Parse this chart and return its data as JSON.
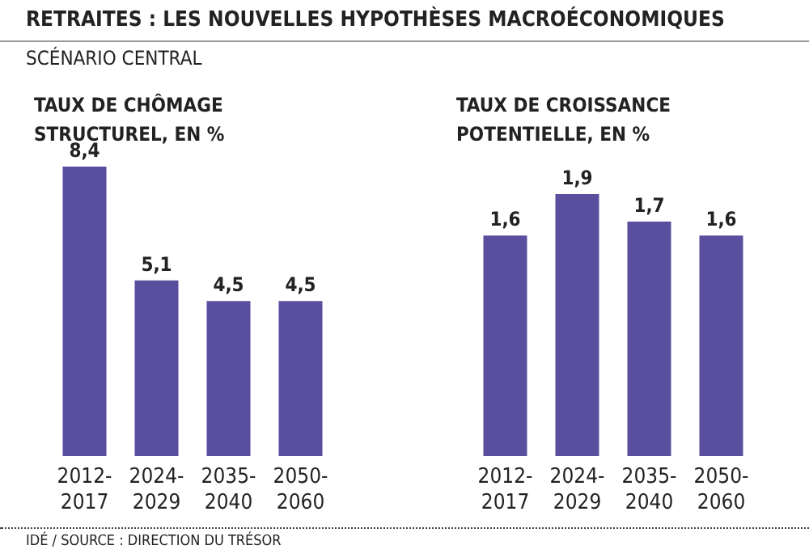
{
  "chart_data": [
    {
      "type": "bar",
      "title": "TAUX DE CHÔMAGE STRUCTUREL, EN %",
      "annotations": [
        "RETRAITES : LES NOUVELLES HYPOTHÈSES MACROÉCONOMIQUES",
        "SCÉNARIO CENTRAL"
      ],
      "categories": [
        "2012-2017",
        "2024-2029",
        "2035-2040",
        "2050-2060"
      ],
      "values": [
        8.4,
        5.1,
        4.5,
        4.5
      ],
      "value_labels": [
        "8,4",
        "5,1",
        "4,5",
        "4,5"
      ],
      "color": "#5a4f9f",
      "tick_labels": "x",
      "grid": false
    },
    {
      "type": "bar",
      "title": "TAUX DE CROISSANCE POTENTIELLE, EN %",
      "annotations": [
        "IDÉ / SOURCE : DIRECTION DU TRÉSOR"
      ],
      "categories": [
        "2012-2017",
        "2024-2029",
        "2035-2040",
        "2050-2060"
      ],
      "values": [
        1.6,
        1.9,
        1.7,
        1.6
      ],
      "value_labels": [
        "1,6",
        "1,9",
        "1,7",
        "1,6"
      ],
      "color": "#5a4f9f",
      "tick_labels": "x",
      "grid": false
    }
  ]
}
